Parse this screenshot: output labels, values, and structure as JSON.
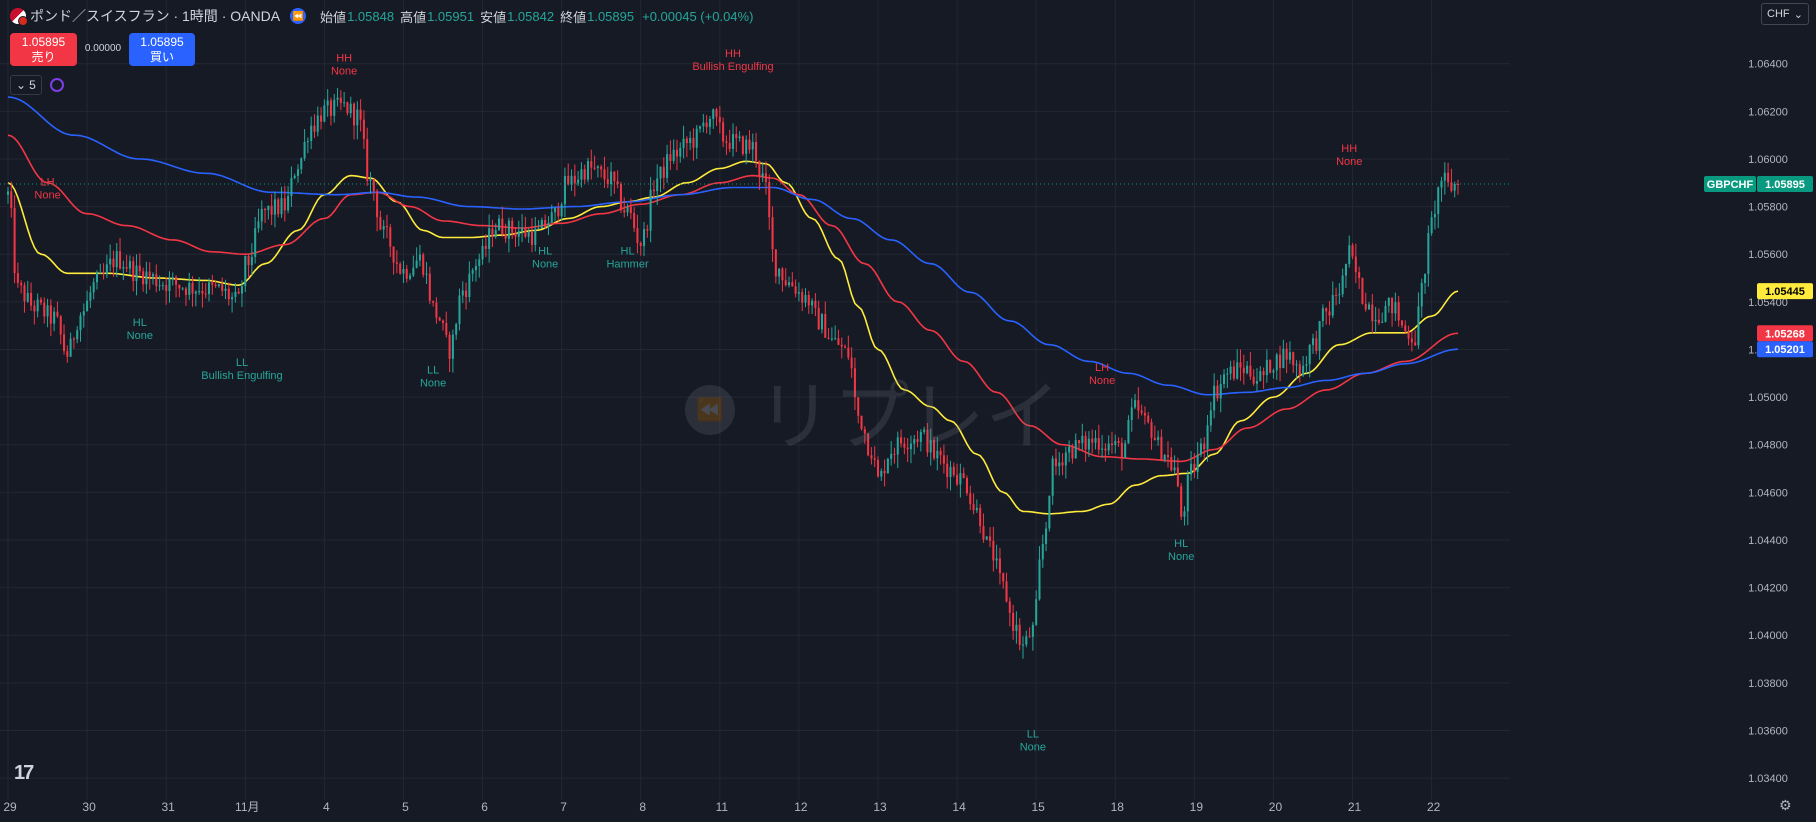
{
  "header": {
    "symbol_title": "ポンド／スイスフラン · 1時間 · OANDA",
    "open_label": "始値",
    "open": "1.05848",
    "high_label": "高値",
    "high": "1.05951",
    "low_label": "安値",
    "low": "1.05842",
    "close_label": "終値",
    "close": "1.05895",
    "change": "+0.00045 (+0.04%)"
  },
  "trade": {
    "sell_price": "1.05895",
    "sell_label": "売り",
    "buy_price": "1.05895",
    "buy_label": "買い",
    "spread": "0.00000"
  },
  "indicator_toggle_label": "5",
  "currency_selector": "CHF",
  "watermark_text": "リプレイ",
  "colors": {
    "background": "#161a25",
    "up": "#26a69a",
    "down": "#f23645",
    "ema_fast": "#ffeb3b",
    "ema_mid": "#f23645",
    "ema_slow": "#2962ff",
    "label_high": "#f23645",
    "label_low": "#26a69a"
  },
  "chart_data": {
    "type": "candlestick",
    "symbol": "GBPCHF",
    "y_ticks": [
      "1.06400",
      "1.06200",
      "1.06000",
      "1.05800",
      "1.05600",
      "1.05400",
      "1.05200",
      "1.05000",
      "1.04800",
      "1.04600",
      "1.04400",
      "1.04200",
      "1.04000",
      "1.03800",
      "1.03600",
      "1.03400"
    ],
    "y_tick_values": [
      1.064,
      1.062,
      1.06,
      1.058,
      1.056,
      1.054,
      1.052,
      1.05,
      1.048,
      1.046,
      1.044,
      1.042,
      1.04,
      1.038,
      1.036,
      1.034
    ],
    "ylim": [
      1.0335,
      1.0655
    ],
    "x_tick_labels": [
      "29",
      "30",
      "31",
      "11月",
      "4",
      "5",
      "6",
      "7",
      "8",
      "11",
      "12",
      "13",
      "14",
      "15",
      "18",
      "19",
      "20",
      "21",
      "22"
    ],
    "x_tick_index": [
      0,
      24,
      48,
      72,
      96,
      120,
      144,
      168,
      192,
      216,
      240,
      264,
      288,
      312,
      336,
      360,
      384,
      408,
      432
    ],
    "grid": true,
    "price_close_anchors": [
      [
        0,
        1.0585
      ],
      [
        3,
        1.0545
      ],
      [
        8,
        1.0538
      ],
      [
        14,
        1.0533
      ],
      [
        18,
        1.0518
      ],
      [
        22,
        1.0535
      ],
      [
        27,
        1.0548
      ],
      [
        33,
        1.0558
      ],
      [
        40,
        1.0552
      ],
      [
        48,
        1.0548
      ],
      [
        56,
        1.0546
      ],
      [
        64,
        1.0545
      ],
      [
        70,
        1.054
      ],
      [
        72,
        1.0555
      ],
      [
        78,
        1.0578
      ],
      [
        84,
        1.058
      ],
      [
        88,
        1.0598
      ],
      [
        92,
        1.0614
      ],
      [
        96,
        1.062
      ],
      [
        102,
        1.0622
      ],
      [
        106,
        1.0618
      ],
      [
        110,
        1.059
      ],
      [
        114,
        1.0568
      ],
      [
        120,
        1.0553
      ],
      [
        125,
        1.0558
      ],
      [
        130,
        1.0535
      ],
      [
        134,
        1.052
      ],
      [
        138,
        1.0545
      ],
      [
        143,
        1.0558
      ],
      [
        148,
        1.0572
      ],
      [
        154,
        1.057
      ],
      [
        160,
        1.0568
      ],
      [
        165,
        1.0575
      ],
      [
        170,
        1.059
      ],
      [
        176,
        1.0596
      ],
      [
        182,
        1.0592
      ],
      [
        188,
        1.0578
      ],
      [
        192,
        1.0565
      ],
      [
        197,
        1.0592
      ],
      [
        202,
        1.0602
      ],
      [
        208,
        1.0608
      ],
      [
        213,
        1.0618
      ],
      [
        218,
        1.0608
      ],
      [
        222,
        1.0606
      ],
      [
        226,
        1.0605
      ],
      [
        229,
        1.0592
      ],
      [
        233,
        1.0555
      ],
      [
        237,
        1.0548
      ],
      [
        242,
        1.0542
      ],
      [
        246,
        1.0532
      ],
      [
        251,
        1.0523
      ],
      [
        255,
        1.0518
      ],
      [
        258,
        1.0492
      ],
      [
        262,
        1.0478
      ],
      [
        264,
        1.0465
      ],
      [
        268,
        1.0478
      ],
      [
        272,
        1.0482
      ],
      [
        277,
        1.0484
      ],
      [
        282,
        1.0475
      ],
      [
        286,
        1.047
      ],
      [
        290,
        1.0465
      ],
      [
        294,
        1.0452
      ],
      [
        298,
        1.0436
      ],
      [
        302,
        1.042
      ],
      [
        305,
        1.0405
      ],
      [
        308,
        1.0395
      ],
      [
        311,
        1.0402
      ],
      [
        314,
        1.0438
      ],
      [
        317,
        1.047
      ],
      [
        322,
        1.0478
      ],
      [
        326,
        1.048
      ],
      [
        330,
        1.0482
      ],
      [
        334,
        1.048
      ],
      [
        338,
        1.0478
      ],
      [
        342,
        1.0495
      ],
      [
        346,
        1.0488
      ],
      [
        350,
        1.0478
      ],
      [
        354,
        1.047
      ],
      [
        356,
        1.045
      ],
      [
        359,
        1.0468
      ],
      [
        362,
        1.0478
      ],
      [
        366,
        1.0502
      ],
      [
        370,
        1.051
      ],
      [
        375,
        1.0512
      ],
      [
        380,
        1.0508
      ],
      [
        384,
        1.0515
      ],
      [
        388,
        1.0518
      ],
      [
        392,
        1.0512
      ],
      [
        396,
        1.0522
      ],
      [
        400,
        1.0535
      ],
      [
        404,
        1.0545
      ],
      [
        407,
        1.056
      ],
      [
        409,
        1.0552
      ],
      [
        411,
        1.0542
      ],
      [
        415,
        1.0535
      ],
      [
        420,
        1.0538
      ],
      [
        424,
        1.0528
      ],
      [
        427,
        1.0525
      ],
      [
        429,
        1.0545
      ],
      [
        431,
        1.0565
      ],
      [
        433,
        1.058
      ],
      [
        435,
        1.0592
      ],
      [
        437,
        1.0588
      ],
      [
        440,
        1.05895
      ]
    ],
    "series": [
      {
        "name": "EMA fast",
        "color": "#ffeb3b",
        "anchors": [
          [
            0,
            1.059
          ],
          [
            10,
            1.056
          ],
          [
            18,
            1.0552
          ],
          [
            30,
            1.0552
          ],
          [
            45,
            1.055
          ],
          [
            60,
            1.0549
          ],
          [
            70,
            1.0547
          ],
          [
            78,
            1.0556
          ],
          [
            88,
            1.057
          ],
          [
            96,
            1.0585
          ],
          [
            104,
            1.0593
          ],
          [
            110,
            1.0592
          ],
          [
            118,
            1.0582
          ],
          [
            126,
            1.057
          ],
          [
            132,
            1.0567
          ],
          [
            140,
            1.0567
          ],
          [
            150,
            1.0568
          ],
          [
            160,
            1.057
          ],
          [
            170,
            1.0575
          ],
          [
            180,
            1.058
          ],
          [
            188,
            1.0582
          ],
          [
            196,
            1.0584
          ],
          [
            206,
            1.059
          ],
          [
            216,
            1.0596
          ],
          [
            224,
            1.0599
          ],
          [
            230,
            1.0598
          ],
          [
            236,
            1.059
          ],
          [
            244,
            1.0575
          ],
          [
            252,
            1.0558
          ],
          [
            258,
            1.0538
          ],
          [
            264,
            1.052
          ],
          [
            272,
            1.0503
          ],
          [
            280,
            1.0496
          ],
          [
            286,
            1.049
          ],
          [
            294,
            1.0476
          ],
          [
            302,
            1.046
          ],
          [
            308,
            1.0452
          ],
          [
            316,
            1.0451
          ],
          [
            326,
            1.0452
          ],
          [
            334,
            1.0455
          ],
          [
            342,
            1.0463
          ],
          [
            350,
            1.0467
          ],
          [
            358,
            1.0468
          ],
          [
            366,
            1.0476
          ],
          [
            374,
            1.049
          ],
          [
            384,
            1.05
          ],
          [
            394,
            1.051
          ],
          [
            404,
            1.0522
          ],
          [
            414,
            1.0527
          ],
          [
            424,
            1.0527
          ],
          [
            432,
            1.0534
          ],
          [
            440,
            1.05445
          ]
        ]
      },
      {
        "name": "EMA mid",
        "color": "#f23645",
        "anchors": [
          [
            0,
            1.061
          ],
          [
            12,
            1.059
          ],
          [
            24,
            1.0577
          ],
          [
            36,
            1.0572
          ],
          [
            50,
            1.0566
          ],
          [
            62,
            1.0561
          ],
          [
            72,
            1.056
          ],
          [
            84,
            1.0564
          ],
          [
            96,
            1.0575
          ],
          [
            104,
            1.0585
          ],
          [
            112,
            1.0586
          ],
          [
            122,
            1.058
          ],
          [
            132,
            1.0574
          ],
          [
            144,
            1.0572
          ],
          [
            156,
            1.0571
          ],
          [
            168,
            1.0573
          ],
          [
            180,
            1.0577
          ],
          [
            192,
            1.0581
          ],
          [
            204,
            1.0585
          ],
          [
            216,
            1.059
          ],
          [
            226,
            1.0593
          ],
          [
            232,
            1.0592
          ],
          [
            240,
            1.0585
          ],
          [
            250,
            1.0572
          ],
          [
            260,
            1.0556
          ],
          [
            270,
            1.054
          ],
          [
            280,
            1.0528
          ],
          [
            290,
            1.0515
          ],
          [
            300,
            1.0502
          ],
          [
            310,
            1.0488
          ],
          [
            320,
            1.048
          ],
          [
            332,
            1.0475
          ],
          [
            344,
            1.0474
          ],
          [
            356,
            1.0473
          ],
          [
            366,
            1.0478
          ],
          [
            376,
            1.0487
          ],
          [
            388,
            1.0495
          ],
          [
            400,
            1.0503
          ],
          [
            412,
            1.051
          ],
          [
            424,
            1.0515
          ],
          [
            440,
            1.05268
          ]
        ]
      },
      {
        "name": "EMA slow",
        "color": "#2962ff",
        "anchors": [
          [
            0,
            1.0626
          ],
          [
            20,
            1.061
          ],
          [
            40,
            1.06
          ],
          [
            60,
            1.0594
          ],
          [
            80,
            1.0586
          ],
          [
            100,
            1.0585
          ],
          [
            112,
            1.0586
          ],
          [
            124,
            1.0584
          ],
          [
            140,
            1.058
          ],
          [
            156,
            1.0579
          ],
          [
            172,
            1.058
          ],
          [
            188,
            1.0582
          ],
          [
            204,
            1.0585
          ],
          [
            220,
            1.0588
          ],
          [
            232,
            1.0588
          ],
          [
            244,
            1.0583
          ],
          [
            256,
            1.0575
          ],
          [
            268,
            1.0566
          ],
          [
            280,
            1.0556
          ],
          [
            292,
            1.0544
          ],
          [
            304,
            1.0532
          ],
          [
            316,
            1.0522
          ],
          [
            328,
            1.0515
          ],
          [
            340,
            1.051
          ],
          [
            352,
            1.0505
          ],
          [
            364,
            1.0501
          ],
          [
            376,
            1.0502
          ],
          [
            388,
            1.0504
          ],
          [
            400,
            1.0507
          ],
          [
            412,
            1.051
          ],
          [
            424,
            1.0514
          ],
          [
            440,
            1.05201
          ]
        ]
      }
    ],
    "annotations": [
      {
        "idx": 71,
        "anchor": "below",
        "price": 1.0518,
        "line1": "LL",
        "line2": "Bullish Engulfing",
        "kind": "low",
        "px_index": 0
      },
      {
        "idx": 12,
        "anchor": "above",
        "price": 1.0578,
        "line1": "LH",
        "line2": "None",
        "kind": "high"
      },
      {
        "idx": 40,
        "anchor": "below",
        "price": 1.0535,
        "line1": "HL",
        "line2": "None",
        "kind": "low"
      },
      {
        "idx": 102,
        "anchor": "above",
        "price": 1.063,
        "line1": "HH",
        "line2": "None",
        "kind": "high"
      },
      {
        "idx": 129,
        "anchor": "below",
        "price": 1.0515,
        "line1": "LL",
        "line2": "None",
        "kind": "low"
      },
      {
        "idx": 163,
        "anchor": "below",
        "price": 1.0565,
        "line1": "HL",
        "line2": "None",
        "kind": "low"
      },
      {
        "idx": 188,
        "anchor": "below",
        "price": 1.0565,
        "line1": "HL",
        "line2": "Hammer",
        "kind": "low"
      },
      {
        "idx": 220,
        "anchor": "above",
        "price": 1.0632,
        "line1": "HH",
        "line2": "Bullish Engulfing",
        "kind": "high"
      },
      {
        "idx": 311,
        "anchor": "below",
        "price": 1.0362,
        "line1": "LL",
        "line2": "None",
        "kind": "low"
      },
      {
        "idx": 332,
        "anchor": "above",
        "price": 1.05,
        "line1": "LH",
        "line2": "None",
        "kind": "high"
      },
      {
        "idx": 356,
        "anchor": "below",
        "price": 1.0442,
        "line1": "HL",
        "line2": "None",
        "kind": "low"
      },
      {
        "idx": 407,
        "anchor": "above",
        "price": 1.0592,
        "line1": "HH",
        "line2": "None",
        "kind": "high"
      }
    ],
    "price_labels": [
      {
        "text": "1.05895",
        "value": 1.05895,
        "color": "#089981",
        "prefix": "GBPCHF"
      },
      {
        "text": "1.05445",
        "value": 1.05445,
        "color": "#ffeb3b",
        "text_color": "#000000"
      },
      {
        "text": "1.05268",
        "value": 1.05268,
        "color": "#f23645"
      },
      {
        "text": "1.05201",
        "value": 1.05201,
        "color": "#2962ff"
      }
    ],
    "candle_count": 441
  }
}
